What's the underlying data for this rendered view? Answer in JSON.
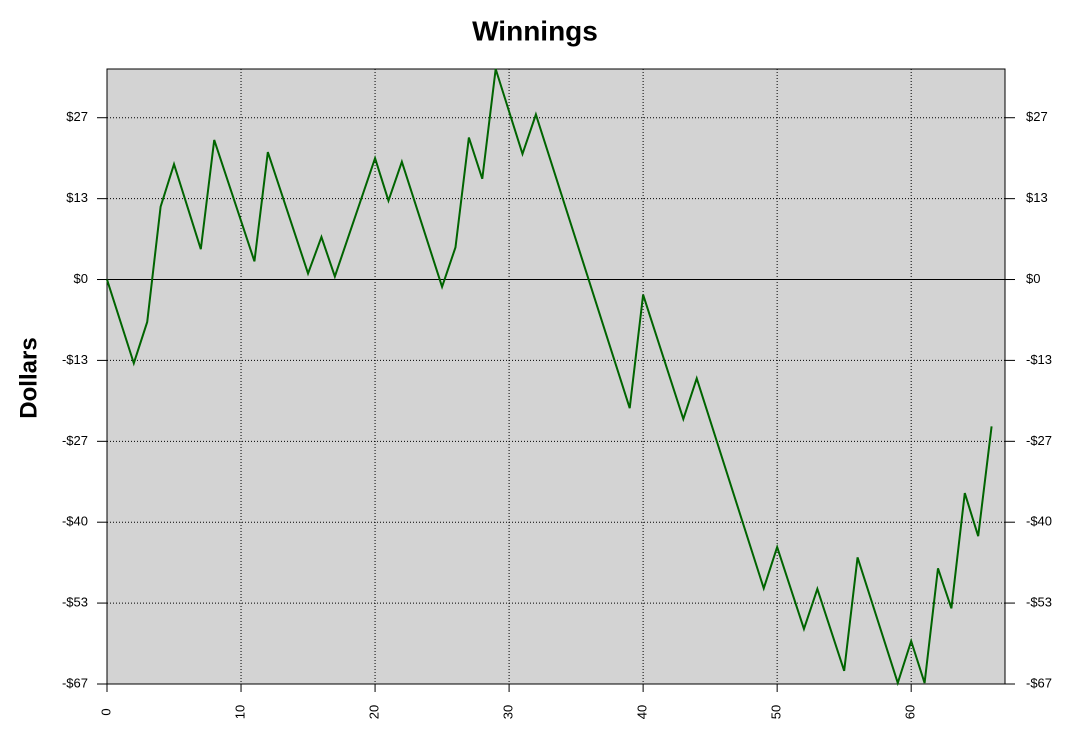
{
  "chart_data": {
    "type": "line",
    "title": "Winnings",
    "y_label": "Dollars",
    "x": [
      0,
      2,
      3,
      4,
      5,
      7,
      8,
      11,
      12,
      15,
      16,
      17,
      20,
      21,
      22,
      25,
      26,
      27,
      28,
      29,
      31,
      32,
      39,
      40,
      43,
      44,
      49,
      50,
      52,
      53,
      55,
      56,
      59,
      60,
      61,
      62,
      63,
      64,
      65,
      66
    ],
    "series": [
      {
        "color": "#006400",
        "values": [
          0,
          -13.8,
          -7,
          12,
          19,
          5,
          23,
          3,
          21,
          1,
          7,
          0.5,
          20,
          13,
          19.4,
          -1.2,
          5.3,
          23.4,
          16.6,
          34.7,
          20.7,
          27.2,
          -21.2,
          -2.5,
          -23,
          -16.3,
          -50.9,
          -44.1,
          -57.6,
          -51,
          -64.5,
          -45.8,
          -66.5,
          -59.6,
          -66.5,
          -47.6,
          -54.2,
          -35.2,
          -42.3,
          -24.2
        ]
      }
    ],
    "xlim": [
      0,
      67
    ],
    "ylim": [
      -66.67,
      34.7
    ],
    "xticks": [
      0,
      10,
      20,
      30,
      40,
      50,
      60
    ],
    "yticks": [
      {
        "value": 26.67,
        "label": "$27"
      },
      {
        "value": 13.33,
        "label": "$13"
      },
      {
        "value": 0,
        "label": "$0"
      },
      {
        "value": -13.33,
        "label": "-$13"
      },
      {
        "value": -26.67,
        "label": "-$27"
      },
      {
        "value": -40,
        "label": "-$40"
      },
      {
        "value": -53.33,
        "label": "-$53"
      },
      {
        "value": -66.67,
        "label": "-$67"
      }
    ],
    "grid": true
  }
}
